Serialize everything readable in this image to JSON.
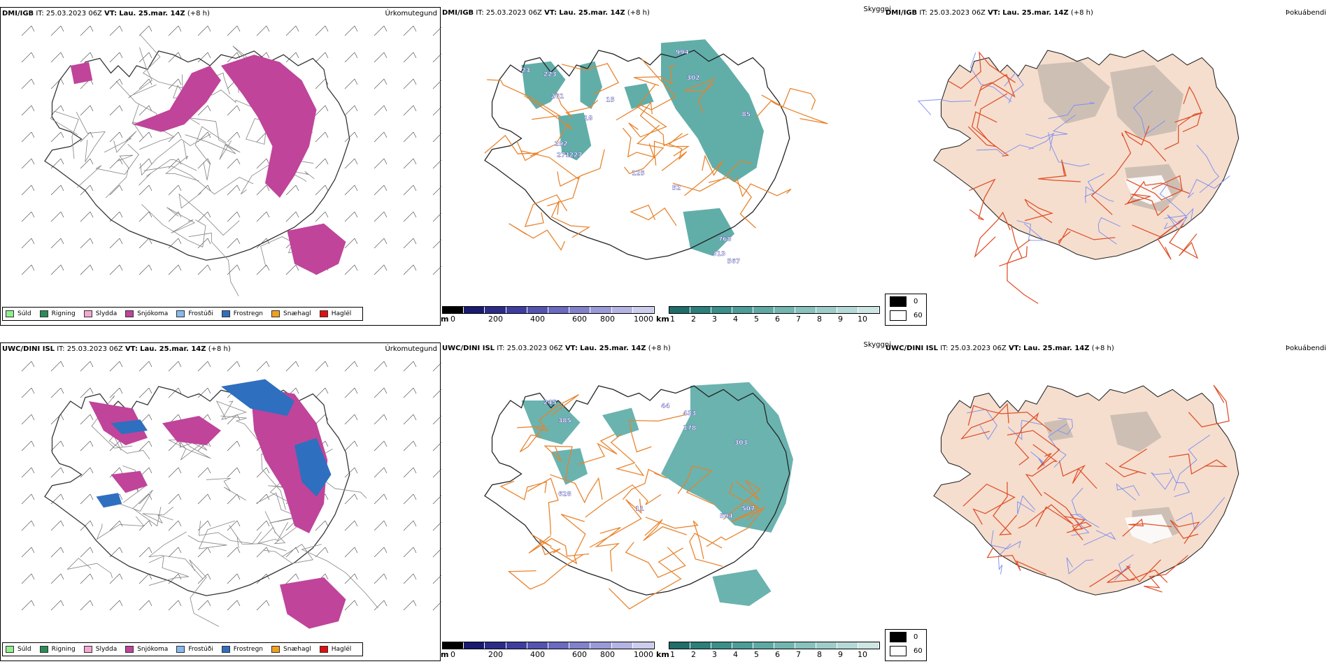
{
  "rows": [
    {
      "model": "DMI/IGB",
      "it_label": "IT:",
      "it_value": "25.03.2023 06Z",
      "vt_label": "VT:",
      "vt_value": "Lau. 25.mar. 14Z",
      "lead": "(+8 h)"
    },
    {
      "model": "UWC/DINI ISL",
      "it_label": "IT:",
      "it_value": "25.03.2023 06Z",
      "vt_label": "VT:",
      "vt_value": "Lau. 25.mar. 14Z",
      "lead": "(+8 h)"
    }
  ],
  "panels": {
    "precip_type": "Úrkomutegund",
    "visibility": "Skyggni",
    "fog": "Þokuábendi"
  },
  "precip_legend": [
    {
      "label": "Súld",
      "color": "#90ee90"
    },
    {
      "label": "Rigning",
      "color": "#2e8b57"
    },
    {
      "label": "Slydda",
      "color": "#f4a8d0"
    },
    {
      "label": "Snjókoma",
      "color": "#c0449a"
    },
    {
      "label": "Frostúði",
      "color": "#87b9f0"
    },
    {
      "label": "Frostregn",
      "color": "#2f6fbf"
    },
    {
      "label": "Snæhagl",
      "color": "#f0a020"
    },
    {
      "label": "Haglél",
      "color": "#e01010"
    }
  ],
  "colors": {
    "snow": "#c0449a",
    "freezing_rain": "#2f6fbf",
    "visibility_teal": "#3a9a94",
    "ceiling_blue": "#5a5ab8",
    "roads": "#e8822a",
    "fog_land": "#f5dece",
    "fog_roads": "#e0502a",
    "fog_rivers": "#7e8ff0"
  },
  "ceiling_bar": {
    "unit": "m",
    "ticks": [
      "0",
      "200",
      "400",
      "600",
      "800",
      "1000"
    ],
    "colors": [
      "#000000",
      "#1a1a6e",
      "#2c2c88",
      "#3e3ea0",
      "#5454b0",
      "#6a6ac0",
      "#8282cc",
      "#9a9ad8",
      "#b4b4e4",
      "#cccced"
    ]
  },
  "visibility_bar": {
    "unit": "km",
    "ticks": [
      "1",
      "2",
      "3",
      "4",
      "5",
      "6",
      "7",
      "8",
      "9",
      "10"
    ],
    "colors": [
      "#1f6e6a",
      "#2c7f7a",
      "#3a8f8a",
      "#4c9d98",
      "#5fa9a4",
      "#73b5b0",
      "#88c1bd",
      "#9ecdc9",
      "#b5d9d6",
      "#cde5e3"
    ]
  },
  "fog_legend": [
    {
      "label": "0",
      "color": "#000000"
    },
    {
      "label": "60",
      "color": "#ffffff"
    }
  ],
  "ceiling_labels_top": [
    "23",
    "223",
    "261",
    "15",
    "18",
    "292",
    "271",
    "227",
    "994",
    "302",
    "85",
    "125",
    "52",
    "768",
    "313",
    "567"
  ],
  "ceiling_labels_bot": [
    "245",
    "385",
    "628",
    "44",
    "433",
    "178",
    "303",
    "594",
    "507",
    "11"
  ]
}
